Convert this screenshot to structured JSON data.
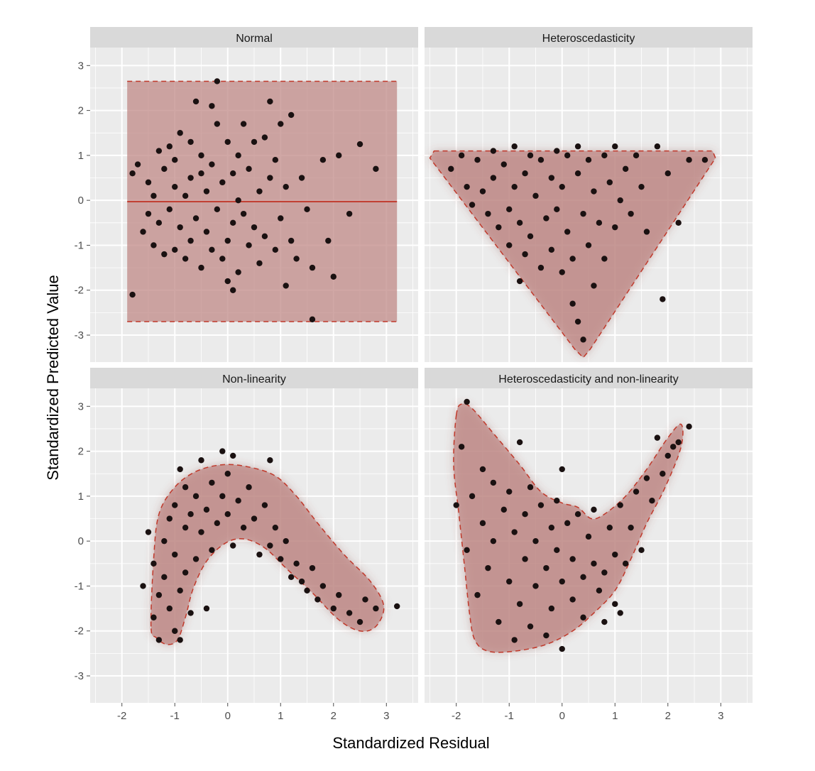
{
  "figure": {
    "xlabel": "Standardized Residual",
    "ylabel": "Standardized Predicted Value",
    "x_ticks": [
      "-2",
      "-1",
      "0",
      "1",
      "2",
      "3"
    ],
    "y_ticks": [
      "3",
      "2",
      "1",
      "0",
      "-1",
      "-2",
      "-3"
    ],
    "colors": {
      "panel_bg": "#ebebeb",
      "strip_bg": "#d9d9d9",
      "grid": "#ffffff",
      "region_fill": "#c08a87",
      "region_stroke": "#c0392b",
      "point": "#1a1111"
    }
  },
  "chart_data": [
    {
      "type": "scatter",
      "title": "Normal",
      "xlim": [
        -2.6,
        3.6
      ],
      "ylim": [
        -3.6,
        3.4
      ],
      "grid": true,
      "region": {
        "shape": "rectangle",
        "x": [
          -1.9,
          3.2
        ],
        "y": [
          -2.7,
          2.65
        ]
      },
      "reference_line_y": -0.03,
      "points": [
        [
          -1.8,
          -2.1
        ],
        [
          -1.8,
          0.6
        ],
        [
          -1.7,
          0.8
        ],
        [
          -1.6,
          -0.7
        ],
        [
          -1.5,
          -0.3
        ],
        [
          -1.5,
          0.4
        ],
        [
          -1.4,
          -1.0
        ],
        [
          -1.4,
          0.1
        ],
        [
          -1.3,
          -0.5
        ],
        [
          -1.3,
          1.1
        ],
        [
          -1.2,
          -1.2
        ],
        [
          -1.2,
          0.7
        ],
        [
          -1.1,
          -0.2
        ],
        [
          -1.1,
          1.2
        ],
        [
          -1.0,
          -1.1
        ],
        [
          -1.0,
          0.3
        ],
        [
          -1.0,
          0.9
        ],
        [
          -0.9,
          -0.6
        ],
        [
          -0.9,
          1.5
        ],
        [
          -0.8,
          -1.3
        ],
        [
          -0.8,
          0.1
        ],
        [
          -0.7,
          -0.9
        ],
        [
          -0.7,
          0.5
        ],
        [
          -0.7,
          1.3
        ],
        [
          -0.6,
          -0.4
        ],
        [
          -0.6,
          2.2
        ],
        [
          -0.5,
          -1.5
        ],
        [
          -0.5,
          0.6
        ],
        [
          -0.5,
          1.0
        ],
        [
          -0.4,
          -0.7
        ],
        [
          -0.4,
          0.2
        ],
        [
          -0.3,
          -1.1
        ],
        [
          -0.3,
          0.8
        ],
        [
          -0.3,
          2.1
        ],
        [
          -0.2,
          -0.2
        ],
        [
          -0.2,
          1.7
        ],
        [
          -0.2,
          2.65
        ],
        [
          -0.1,
          -1.3
        ],
        [
          -0.1,
          0.4
        ],
        [
          0.0,
          -1.8
        ],
        [
          0.0,
          -0.9
        ],
        [
          0.0,
          1.3
        ],
        [
          0.1,
          -2.0
        ],
        [
          0.1,
          -0.5
        ],
        [
          0.1,
          0.6
        ],
        [
          0.2,
          -1.6
        ],
        [
          0.2,
          0.0
        ],
        [
          0.2,
          1.0
        ],
        [
          0.3,
          -0.3
        ],
        [
          0.3,
          1.7
        ],
        [
          0.4,
          -1.0
        ],
        [
          0.4,
          0.7
        ],
        [
          0.5,
          -0.6
        ],
        [
          0.5,
          1.3
        ],
        [
          0.6,
          -1.4
        ],
        [
          0.6,
          0.2
        ],
        [
          0.7,
          -0.8
        ],
        [
          0.7,
          1.4
        ],
        [
          0.8,
          0.5
        ],
        [
          0.8,
          2.2
        ],
        [
          0.9,
          -1.1
        ],
        [
          0.9,
          0.9
        ],
        [
          1.0,
          -0.4
        ],
        [
          1.0,
          1.7
        ],
        [
          1.1,
          -1.9
        ],
        [
          1.1,
          0.3
        ],
        [
          1.2,
          -0.9
        ],
        [
          1.2,
          1.9
        ],
        [
          1.3,
          -1.3
        ],
        [
          1.4,
          0.5
        ],
        [
          1.5,
          -0.2
        ],
        [
          1.6,
          -1.5
        ],
        [
          1.6,
          -2.65
        ],
        [
          1.8,
          0.9
        ],
        [
          1.9,
          -0.9
        ],
        [
          2.0,
          -1.7
        ],
        [
          2.1,
          1.0
        ],
        [
          2.3,
          -0.3
        ],
        [
          2.5,
          1.25
        ],
        [
          2.8,
          0.7
        ]
      ]
    },
    {
      "type": "scatter",
      "title": "Heteroscedasticity",
      "xlim": [
        -2.6,
        3.6
      ],
      "ylim": [
        -3.6,
        3.4
      ],
      "grid": true,
      "region": {
        "shape": "inverted-triangle",
        "vertices": [
          [
            -2.5,
            1.1
          ],
          [
            2.9,
            1.1
          ],
          [
            0.4,
            -3.5
          ]
        ]
      },
      "points": [
        [
          -2.1,
          0.7
        ],
        [
          -1.9,
          1.0
        ],
        [
          -1.8,
          0.3
        ],
        [
          -1.7,
          -0.1
        ],
        [
          -1.6,
          0.9
        ],
        [
          -1.5,
          0.2
        ],
        [
          -1.4,
          -0.3
        ],
        [
          -1.3,
          1.1
        ],
        [
          -1.3,
          0.5
        ],
        [
          -1.2,
          -0.6
        ],
        [
          -1.1,
          0.8
        ],
        [
          -1.0,
          -0.2
        ],
        [
          -1.0,
          -1.0
        ],
        [
          -0.9,
          1.2
        ],
        [
          -0.9,
          0.3
        ],
        [
          -0.8,
          -0.5
        ],
        [
          -0.8,
          -1.8
        ],
        [
          -0.7,
          0.6
        ],
        [
          -0.7,
          -1.2
        ],
        [
          -0.6,
          1.0
        ],
        [
          -0.6,
          -0.8
        ],
        [
          -0.5,
          0.1
        ],
        [
          -0.4,
          -1.5
        ],
        [
          -0.4,
          0.9
        ],
        [
          -0.3,
          -0.4
        ],
        [
          -0.2,
          0.5
        ],
        [
          -0.2,
          -1.1
        ],
        [
          -0.1,
          1.1
        ],
        [
          -0.1,
          -0.2
        ],
        [
          0.0,
          -1.6
        ],
        [
          0.0,
          0.3
        ],
        [
          0.1,
          -0.7
        ],
        [
          0.1,
          1.0
        ],
        [
          0.2,
          -2.3
        ],
        [
          0.2,
          -1.3
        ],
        [
          0.3,
          0.6
        ],
        [
          0.3,
          1.2
        ],
        [
          0.3,
          -2.7
        ],
        [
          0.4,
          -0.3
        ],
        [
          0.4,
          -3.1
        ],
        [
          0.5,
          -1.0
        ],
        [
          0.5,
          0.9
        ],
        [
          0.6,
          0.2
        ],
        [
          0.6,
          -1.9
        ],
        [
          0.7,
          -0.5
        ],
        [
          0.8,
          1.0
        ],
        [
          0.8,
          -1.3
        ],
        [
          0.9,
          0.4
        ],
        [
          1.0,
          -0.6
        ],
        [
          1.0,
          1.2
        ],
        [
          1.1,
          0.0
        ],
        [
          1.2,
          0.7
        ],
        [
          1.3,
          -0.3
        ],
        [
          1.4,
          1.0
        ],
        [
          1.5,
          0.3
        ],
        [
          1.6,
          -0.7
        ],
        [
          1.8,
          1.2
        ],
        [
          1.9,
          -2.2
        ],
        [
          2.0,
          0.6
        ],
        [
          2.2,
          -0.5
        ],
        [
          2.4,
          0.9
        ],
        [
          2.7,
          0.9
        ]
      ]
    },
    {
      "type": "scatter",
      "title": "Non-linearity",
      "xlim": [
        -2.6,
        3.6
      ],
      "ylim": [
        -3.6,
        3.4
      ],
      "grid": true,
      "region": {
        "shape": "arch"
      },
      "points": [
        [
          -1.6,
          -1.0
        ],
        [
          -1.5,
          0.2
        ],
        [
          -1.4,
          -1.7
        ],
        [
          -1.4,
          -0.5
        ],
        [
          -1.3,
          -2.2
        ],
        [
          -1.3,
          -1.2
        ],
        [
          -1.2,
          0.0
        ],
        [
          -1.2,
          -0.8
        ],
        [
          -1.1,
          -1.5
        ],
        [
          -1.1,
          0.5
        ],
        [
          -1.0,
          -2.0
        ],
        [
          -1.0,
          -0.3
        ],
        [
          -1.0,
          0.8
        ],
        [
          -0.9,
          1.6
        ],
        [
          -0.9,
          -1.1
        ],
        [
          -0.9,
          -2.2
        ],
        [
          -0.8,
          0.3
        ],
        [
          -0.8,
          -0.7
        ],
        [
          -0.8,
          1.2
        ],
        [
          -0.7,
          -1.6
        ],
        [
          -0.7,
          0.6
        ],
        [
          -0.6,
          -0.4
        ],
        [
          -0.6,
          1.0
        ],
        [
          -0.5,
          1.8
        ],
        [
          -0.5,
          0.2
        ],
        [
          -0.4,
          -1.5
        ],
        [
          -0.4,
          0.7
        ],
        [
          -0.3,
          1.3
        ],
        [
          -0.3,
          -0.2
        ],
        [
          -0.2,
          0.4
        ],
        [
          -0.1,
          1.0
        ],
        [
          -0.1,
          2.0
        ],
        [
          0.0,
          0.6
        ],
        [
          0.0,
          1.5
        ],
        [
          0.1,
          -0.1
        ],
        [
          0.1,
          1.9
        ],
        [
          0.2,
          0.9
        ],
        [
          0.3,
          0.3
        ],
        [
          0.4,
          1.2
        ],
        [
          0.5,
          0.5
        ],
        [
          0.6,
          -0.3
        ],
        [
          0.7,
          0.8
        ],
        [
          0.8,
          1.8
        ],
        [
          0.8,
          -0.1
        ],
        [
          0.9,
          0.3
        ],
        [
          1.0,
          -0.4
        ],
        [
          1.1,
          0.0
        ],
        [
          1.2,
          -0.8
        ],
        [
          1.3,
          -0.5
        ],
        [
          1.4,
          -0.9
        ],
        [
          1.5,
          -1.1
        ],
        [
          1.6,
          -0.6
        ],
        [
          1.7,
          -1.3
        ],
        [
          1.8,
          -1.0
        ],
        [
          2.0,
          -1.5
        ],
        [
          2.1,
          -1.2
        ],
        [
          2.3,
          -1.6
        ],
        [
          2.5,
          -1.8
        ],
        [
          2.6,
          -1.3
        ],
        [
          2.8,
          -1.5
        ],
        [
          3.2,
          -1.45
        ]
      ]
    },
    {
      "type": "scatter",
      "title": "Heteroscedasticity and non-linearity",
      "xlim": [
        -2.6,
        3.6
      ],
      "ylim": [
        -3.6,
        3.4
      ],
      "grid": true,
      "region": {
        "shape": "v-funnel"
      },
      "points": [
        [
          -2.0,
          0.8
        ],
        [
          -1.9,
          2.1
        ],
        [
          -1.8,
          -0.2
        ],
        [
          -1.8,
          3.1
        ],
        [
          -1.7,
          1.0
        ],
        [
          -1.6,
          -1.2
        ],
        [
          -1.5,
          0.4
        ],
        [
          -1.5,
          1.6
        ],
        [
          -1.4,
          -0.6
        ],
        [
          -1.3,
          1.3
        ],
        [
          -1.3,
          0.0
        ],
        [
          -1.2,
          -1.8
        ],
        [
          -1.1,
          0.7
        ],
        [
          -1.0,
          -0.9
        ],
        [
          -1.0,
          1.1
        ],
        [
          -0.9,
          -2.2
        ],
        [
          -0.9,
          0.2
        ],
        [
          -0.8,
          -1.4
        ],
        [
          -0.8,
          2.2
        ],
        [
          -0.7,
          0.6
        ],
        [
          -0.7,
          -0.4
        ],
        [
          -0.6,
          -1.9
        ],
        [
          -0.6,
          1.2
        ],
        [
          -0.5,
          0.0
        ],
        [
          -0.5,
          -1.0
        ],
        [
          -0.4,
          0.8
        ],
        [
          -0.3,
          -2.1
        ],
        [
          -0.3,
          -0.6
        ],
        [
          -0.2,
          0.3
        ],
        [
          -0.2,
          -1.5
        ],
        [
          -0.1,
          0.9
        ],
        [
          -0.1,
          -0.2
        ],
        [
          0.0,
          -2.4
        ],
        [
          0.0,
          -0.9
        ],
        [
          0.0,
          1.6
        ],
        [
          0.1,
          0.4
        ],
        [
          0.2,
          -1.3
        ],
        [
          0.2,
          -0.4
        ],
        [
          0.3,
          0.6
        ],
        [
          0.4,
          -0.8
        ],
        [
          0.4,
          -1.7
        ],
        [
          0.5,
          0.1
        ],
        [
          0.6,
          -0.5
        ],
        [
          0.6,
          0.7
        ],
        [
          0.7,
          -1.1
        ],
        [
          0.8,
          -0.7
        ],
        [
          0.8,
          -1.8
        ],
        [
          0.9,
          0.3
        ],
        [
          1.0,
          -0.3
        ],
        [
          1.0,
          -1.4
        ],
        [
          1.1,
          0.8
        ],
        [
          1.1,
          -1.6
        ],
        [
          1.2,
          -0.5
        ],
        [
          1.3,
          0.3
        ],
        [
          1.4,
          1.1
        ],
        [
          1.5,
          -0.2
        ],
        [
          1.6,
          1.4
        ],
        [
          1.7,
          0.9
        ],
        [
          1.8,
          2.3
        ],
        [
          1.9,
          1.5
        ],
        [
          2.0,
          1.9
        ],
        [
          2.1,
          2.1
        ],
        [
          2.2,
          2.2
        ],
        [
          2.4,
          2.55
        ]
      ]
    }
  ]
}
